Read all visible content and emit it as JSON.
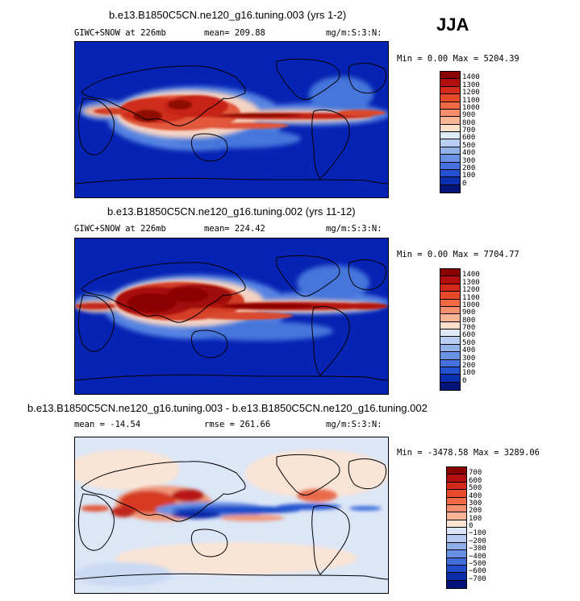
{
  "season": "JJA",
  "panels": [
    {
      "id": "top",
      "title": "b.e13.B1850C5CN.ne120_g16.tuning.003 (yrs 1-2)",
      "left_label": "GIWC+SNOW at 226mb",
      "mean_label": "mean= 209.88",
      "units": "mg/m:S:3:N:",
      "minmax": "Min =   0.00 Max = 5204.39",
      "levels": [
        "1400",
        "1300",
        "1200",
        "1100",
        "1000",
        "900",
        "800",
        "700",
        "600",
        "500",
        "400",
        "300",
        "200",
        "100",
        "0"
      ],
      "colors": [
        "#8b0000",
        "#b40f0f",
        "#d42a1c",
        "#e64a2b",
        "#ef6a45",
        "#f58e6c",
        "#fab496",
        "#fde0cc",
        "#dfeaf9",
        "#b9cff1",
        "#92b2ea",
        "#6a92e4",
        "#4571dc",
        "#2451cf",
        "#0a2fb0",
        "#00147a"
      ]
    },
    {
      "id": "middle",
      "title": "b.e13.B1850C5CN.ne120_g16.tuning.002 (yrs 11-12)",
      "left_label": "GIWC+SNOW at 226mb",
      "mean_label": "mean= 224.42",
      "units": "mg/m:S:3:N:",
      "minmax": "Min =   0.00 Max = 7704.77",
      "levels": [
        "1400",
        "1300",
        "1200",
        "1100",
        "1000",
        "900",
        "800",
        "700",
        "600",
        "500",
        "400",
        "300",
        "200",
        "100",
        "0"
      ],
      "colors": [
        "#8b0000",
        "#b40f0f",
        "#d42a1c",
        "#e64a2b",
        "#ef6a45",
        "#f58e6c",
        "#fab496",
        "#fde0cc",
        "#dfeaf9",
        "#b9cff1",
        "#92b2ea",
        "#6a92e4",
        "#4571dc",
        "#2451cf",
        "#0a2fb0",
        "#00147a"
      ]
    },
    {
      "id": "bottom",
      "title": "b.e13.B1850C5CN.ne120_g16.tuning.003 - b.e13.B1850C5CN.ne120_g16.tuning.002",
      "left_label": "mean = -14.54",
      "mean_label": "rmse = 261.66",
      "units": "mg/m:S:3:N:",
      "minmax": "Min = -3478.58 Max = 3289.06",
      "levels": [
        "700",
        "600",
        "500",
        "400",
        "300",
        "200",
        "100",
        "0",
        "-100",
        "-200",
        "-300",
        "-400",
        "-500",
        "-600",
        "-700"
      ],
      "colors": [
        "#8b0000",
        "#b40f0f",
        "#d42a1c",
        "#e64a2b",
        "#ef6a45",
        "#f58e6c",
        "#fab496",
        "#fde4d3",
        "#dae6f6",
        "#b6cbef",
        "#8eaee8",
        "#6790e2",
        "#406ed9",
        "#1f4dcb",
        "#0a2ca9",
        "#00137a"
      ]
    }
  ]
}
